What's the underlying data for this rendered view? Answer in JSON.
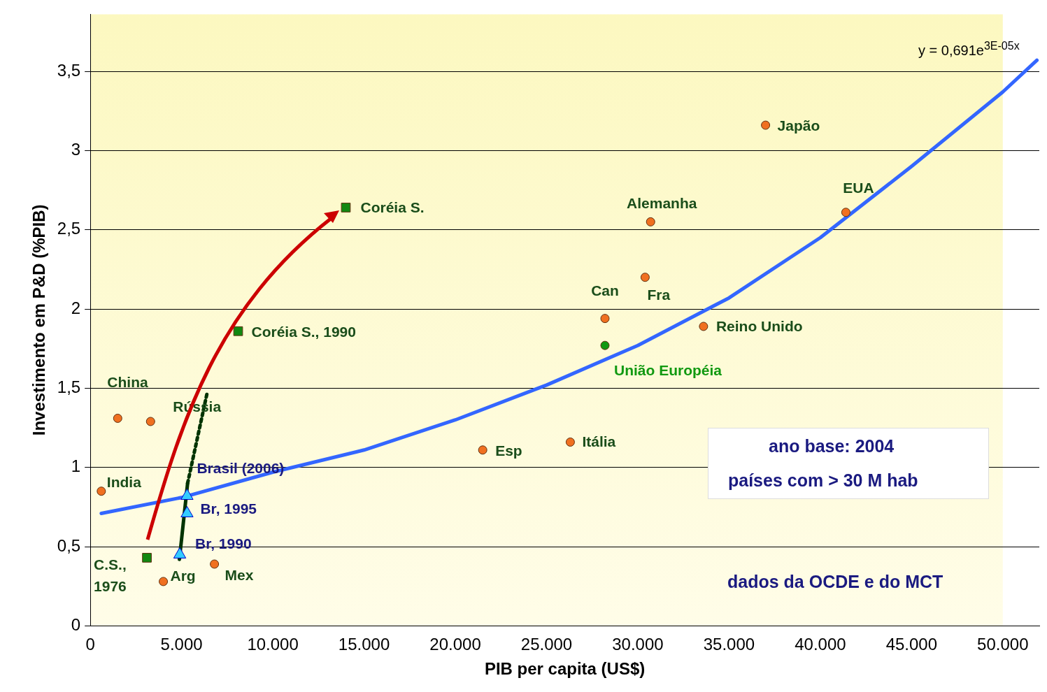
{
  "chart_data": {
    "type": "scatter",
    "xlabel": "PIB per capita (US$)",
    "ylabel": "Investimento em P&D (%PIB)",
    "xlim": [
      0,
      52000
    ],
    "xticks": [
      0,
      {
        "value": 5000,
        "label": "5.000"
      },
      {
        "value": 10000,
        "label": "10.000"
      },
      {
        "value": 15000,
        "label": "15.000"
      },
      {
        "value": 20000,
        "label": "20.000"
      },
      {
        "value": 25000,
        "label": "25.000"
      },
      {
        "value": 30000,
        "label": "30.000"
      },
      {
        "value": 35000,
        "label": "35.000"
      },
      {
        "value": 40000,
        "label": "40.000"
      },
      {
        "value": 45000,
        "label": "45.000"
      },
      {
        "value": 50000,
        "label": "50.000"
      }
    ],
    "ylim": [
      0,
      3.86
    ],
    "yticks": [
      0,
      {
        "value": 0.5,
        "label": "0,5"
      },
      1,
      {
        "value": 1.5,
        "label": "1,5"
      },
      2,
      {
        "value": 2.5,
        "label": "2,5"
      },
      3,
      {
        "value": 3.5,
        "label": "3,5"
      }
    ],
    "grid": "y",
    "legend": false,
    "series": [
      {
        "type": "line",
        "color": "#3366ff",
        "marker": "none",
        "line_style": "solid",
        "x": [
          600,
          5000,
          10000,
          15000,
          20000,
          25000,
          30000,
          35000,
          40000,
          45000,
          50000,
          51870
        ],
        "values": [
          0.71,
          0.81,
          0.97,
          1.11,
          1.3,
          1.52,
          1.77,
          2.07,
          2.45,
          2.9,
          3.37,
          3.57
        ]
      },
      {
        "type": "line",
        "color": "#003300",
        "marker": "none",
        "line_style": "solid",
        "x": [
          4880,
          5330
        ],
        "values": [
          0.42,
          0.9
        ]
      },
      {
        "type": "line",
        "color": "#003300",
        "marker": "none",
        "line_style": "dotted",
        "x": [
          5330,
          6400
        ],
        "values": [
          0.9,
          1.47
        ]
      },
      {
        "type": "scatter",
        "color": "#f07020",
        "marker": "circle",
        "x": [
          37000,
          41400,
          30700,
          30400,
          28200,
          33600,
          26300,
          21500,
          1500,
          3300,
          600,
          4000,
          6800
        ],
        "values": [
          3.16,
          2.61,
          2.55,
          2.2,
          1.94,
          1.89,
          1.16,
          1.11,
          1.31,
          1.29,
          0.85,
          0.28,
          0.39
        ]
      },
      {
        "type": "scatter",
        "color": "#119911",
        "marker": "circle",
        "x": [
          28200
        ],
        "values": [
          1.77
        ]
      },
      {
        "type": "scatter",
        "color": "#118811",
        "marker": "square",
        "x": [
          14000,
          8100,
          3100
        ],
        "values": [
          2.64,
          1.86,
          0.43
        ]
      },
      {
        "type": "scatter",
        "color": "#33ccff",
        "marker": "triangle",
        "x": [
          4900,
          5300,
          5300
        ],
        "values": [
          0.45,
          0.71,
          0.82
        ]
      }
    ],
    "annotations": [
      {
        "text": "Japão",
        "x": 37000,
        "y": 3.16
      },
      {
        "text": "EUA",
        "x": 41400,
        "y": 2.61
      },
      {
        "text": "Alemanha",
        "x": 30700,
        "y": 2.55
      },
      {
        "text": "Fra",
        "x": 30400,
        "y": 2.2
      },
      {
        "text": "Can",
        "x": 28200,
        "y": 1.94
      },
      {
        "text": "Reino Unido",
        "x": 33600,
        "y": 1.89
      },
      {
        "text": "União Européia",
        "x": 28200,
        "y": 1.77
      },
      {
        "text": "Itália",
        "x": 26300,
        "y": 1.16
      },
      {
        "text": "Esp",
        "x": 21500,
        "y": 1.11
      },
      {
        "text": "China",
        "x": 1500,
        "y": 1.31
      },
      {
        "text": "Rússia",
        "x": 3300,
        "y": 1.29
      },
      {
        "text": "India",
        "x": 600,
        "y": 0.85
      },
      {
        "text": "Arg",
        "x": 4000,
        "y": 0.28
      },
      {
        "text": "Mex",
        "x": 6800,
        "y": 0.39
      },
      {
        "text": "Coréia S.",
        "x": 14000,
        "y": 2.64
      },
      {
        "text": "Coréia S., 1990",
        "x": 8100,
        "y": 1.86
      },
      {
        "text": "C.S., 1976",
        "x": 3100,
        "y": 0.43
      },
      {
        "text": "Br, 1990",
        "x": 4900,
        "y": 0.45
      },
      {
        "text": "Br, 1995",
        "x": 5300,
        "y": 0.71
      },
      {
        "text": "Brasil (2006)",
        "x": 5300,
        "y": 0.82
      },
      "y = 0,691e$^{3E-05x}$",
      "ano base: 2004",
      "países com > 30 M hab",
      "dados da OCDE e do MCT"
    ]
  }
}
